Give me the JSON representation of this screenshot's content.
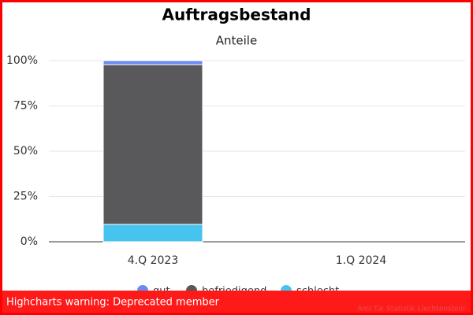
{
  "chart_data": {
    "type": "stacked_bar",
    "title": "Auftragsbestand",
    "subtitle": "Anteile",
    "categories": [
      "4.Q 2023",
      "1.Q 2024"
    ],
    "series": [
      {
        "name": "gut",
        "color": "#6b8af0",
        "values": [
          2.2,
          null
        ]
      },
      {
        "name": "befriedigend",
        "color": "#59585b",
        "values": [
          88.2,
          null
        ]
      },
      {
        "name": "schlecht",
        "color": "#47c3f0",
        "values": [
          9.6,
          null
        ]
      }
    ],
    "ylim": [
      0,
      100
    ],
    "yticks": [
      {
        "value": 0,
        "label": "0%"
      },
      {
        "value": 25,
        "label": "25%"
      },
      {
        "value": 50,
        "label": "50%"
      },
      {
        "value": 75,
        "label": "75%"
      },
      {
        "value": 100,
        "label": "100%"
      }
    ],
    "grid": true,
    "warning": "Highcharts warning: Deprecated member",
    "credits": "Amt für Statistik Liechtenstein"
  }
}
